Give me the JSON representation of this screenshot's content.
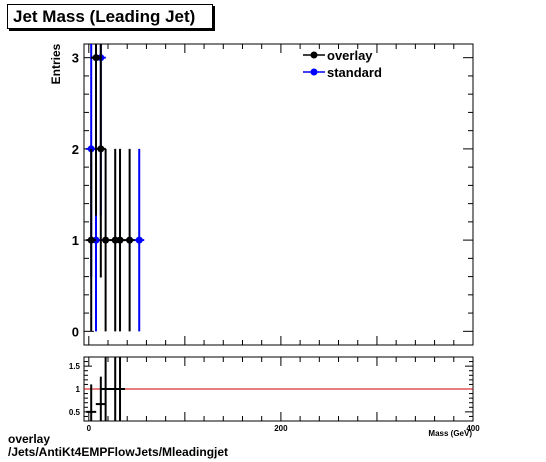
{
  "chart_data": [
    {
      "type": "scatter",
      "title": "Jet Mass (Leading Jet)",
      "ylabel": "Entries",
      "xlabel": "Mass (GeV)",
      "xlim": [
        -5,
        400
      ],
      "ylim": [
        -0.15,
        3.15
      ],
      "yticks": [
        "0",
        "1",
        "2",
        "3"
      ],
      "xticks": [
        "0",
        "200",
        "400"
      ],
      "legend_position": "top-right",
      "series": [
        {
          "name": "overlay",
          "color": "#000000",
          "points": [
            {
              "x": 2.5,
              "y": 1,
              "err": 1
            },
            {
              "x": 7.5,
              "y": 3,
              "err": 1.73
            },
            {
              "x": 12.5,
              "y": 2,
              "err": 1.41
            },
            {
              "x": 17.5,
              "y": 1,
              "err": 1
            },
            {
              "x": 27.5,
              "y": 1,
              "err": 1
            },
            {
              "x": 32.5,
              "y": 1,
              "err": 1
            },
            {
              "x": 42.5,
              "y": 1,
              "err": 1
            }
          ]
        },
        {
          "name": "standard",
          "color": "#0000ff",
          "points": [
            {
              "x": 2.5,
              "y": 2,
              "err": 1.41
            },
            {
              "x": 7.5,
              "y": 1,
              "err": 1
            },
            {
              "x": 12.5,
              "y": 3,
              "err": 1.73
            },
            {
              "x": 52.5,
              "y": 1,
              "err": 1
            }
          ]
        }
      ]
    },
    {
      "type": "scatter",
      "title": "",
      "xlabel": "Mass (GeV)",
      "ylabel": "",
      "xlim": [
        -5,
        400
      ],
      "ylim": [
        0.3,
        1.7
      ],
      "yticks": [
        "0.5",
        "1",
        "1.5"
      ],
      "xticks": [
        "0",
        "200",
        "400"
      ],
      "reference_line": {
        "y": 1,
        "color": "#cc0000"
      },
      "series": [
        {
          "name": "",
          "color": "#000000",
          "points": [
            {
              "x": 2.5,
              "y": 0.5,
              "err": 0.6
            },
            {
              "x": 12.5,
              "y": 0.67,
              "err": 0.6
            },
            {
              "x": 17.5,
              "y": 1.0,
              "err": 1.0
            },
            {
              "x": 27.5,
              "y": 1.0,
              "err": 1.0
            },
            {
              "x": 32.5,
              "y": 1.0,
              "err": 1.0
            }
          ]
        }
      ]
    }
  ],
  "footer": {
    "line1": "overlay",
    "line2": "/Jets/AntiKt4EMPFlowJets/Mleadingjet"
  }
}
